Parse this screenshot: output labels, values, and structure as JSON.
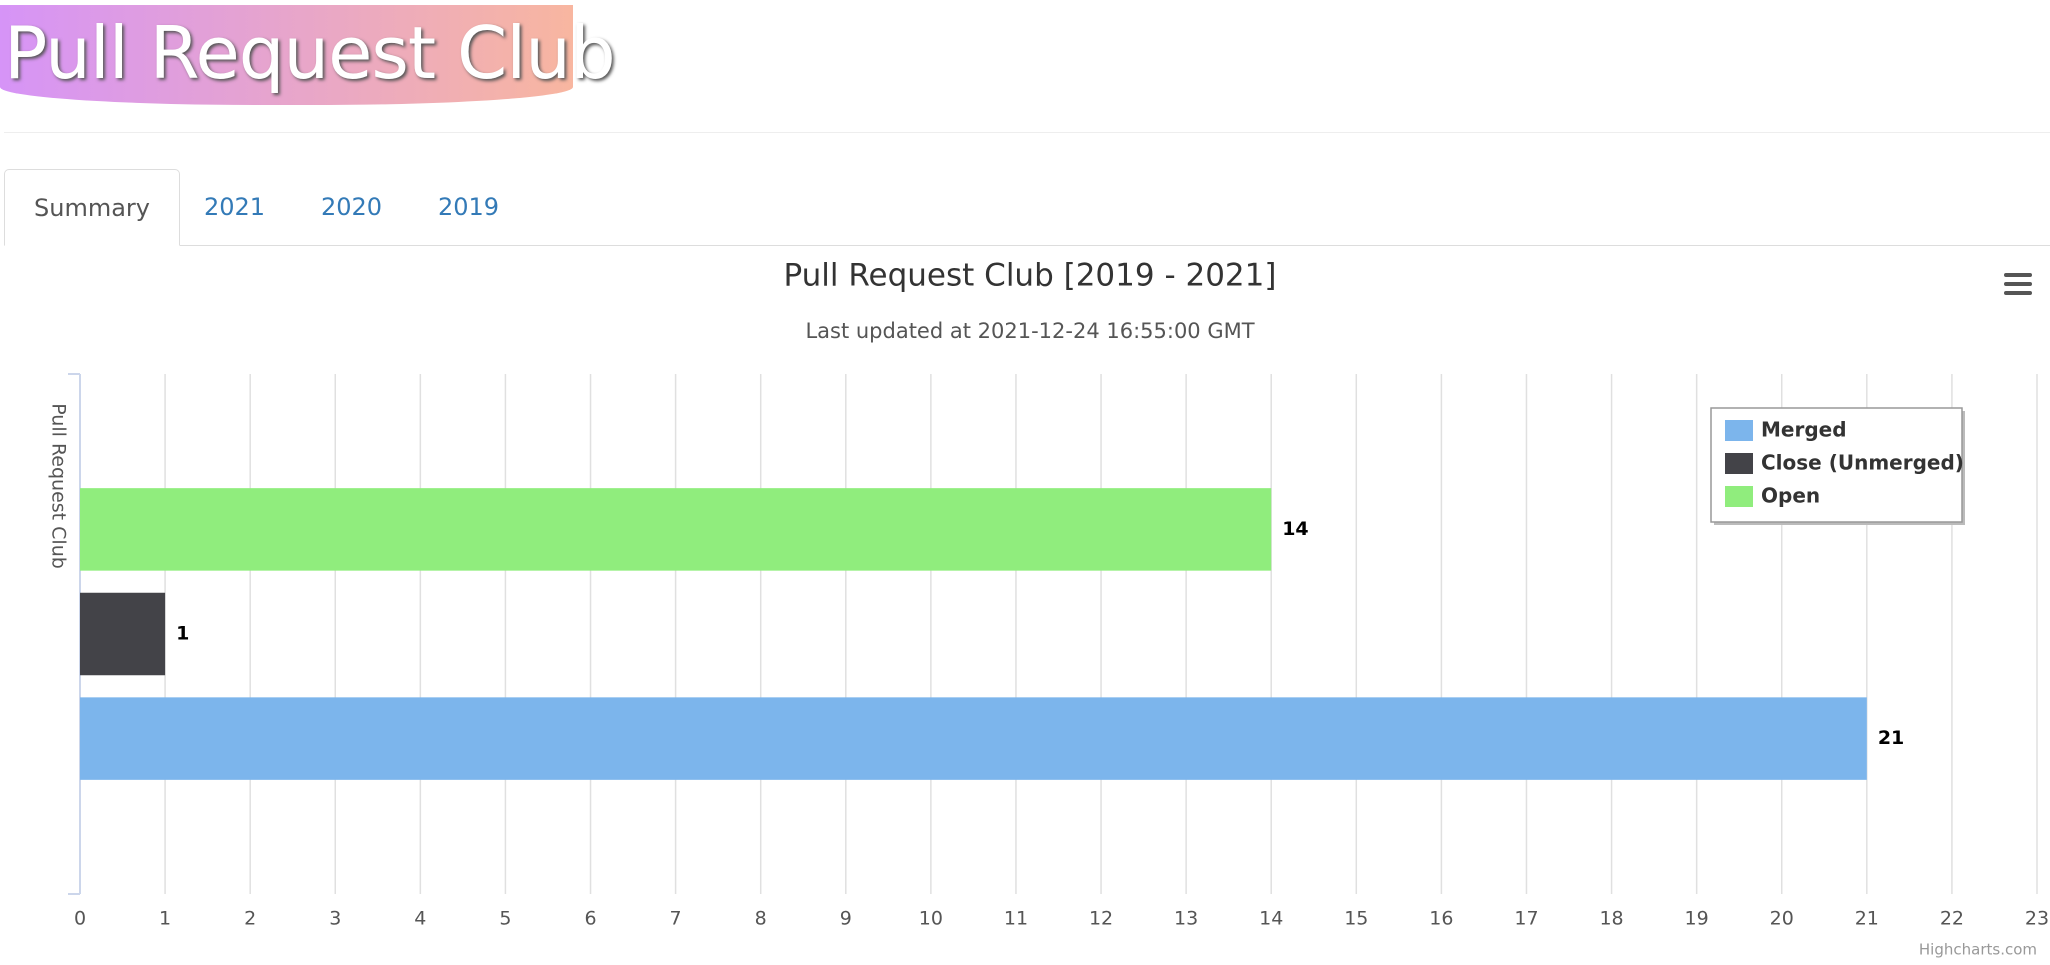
{
  "header": {
    "logo": "Pull Request Club"
  },
  "tabs": [
    "Summary",
    "2021",
    "2020",
    "2019"
  ],
  "chart_data": {
    "type": "bar",
    "orientation": "horizontal",
    "title": "Pull Request Club [2019 - 2021]",
    "subtitle": "Last updated at 2021-12-24 16:55:00 GMT",
    "y_axis_label": "Pull Request Club",
    "categories": [
      null
    ],
    "series": [
      {
        "name": "Merged",
        "color": "#7cb5ec",
        "values": [
          21
        ]
      },
      {
        "name": "Close (Unmerged)",
        "color": "#434348",
        "values": [
          1
        ]
      },
      {
        "name": "Open",
        "color": "#90ed7d",
        "values": [
          14
        ]
      }
    ],
    "xlim": [
      0,
      23
    ],
    "xticks": [
      0,
      1,
      2,
      3,
      4,
      5,
      6,
      7,
      8,
      9,
      10,
      11,
      12,
      13,
      14,
      15,
      16,
      17,
      18,
      19,
      20,
      21,
      22,
      23
    ],
    "grid": true,
    "legend": "top-right",
    "data_labels": true,
    "credits": "Highcharts.com"
  }
}
